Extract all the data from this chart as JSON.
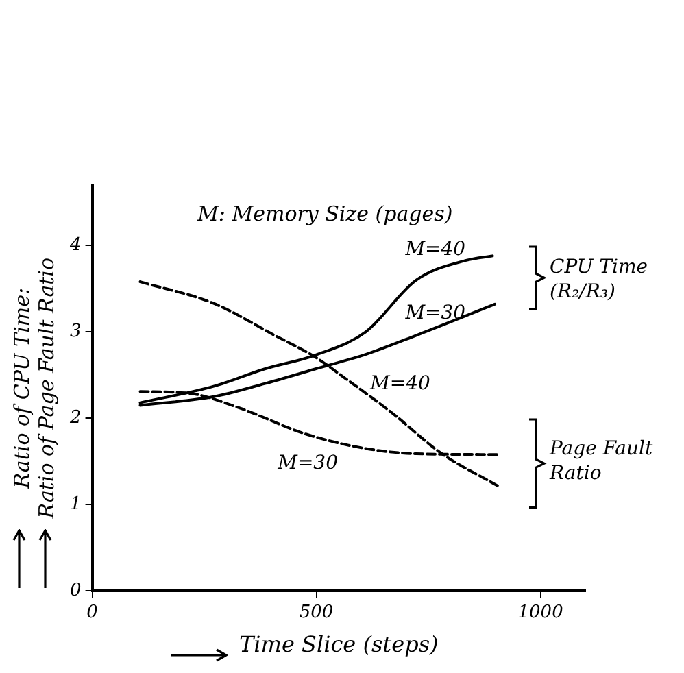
{
  "chart_data": {
    "type": "line",
    "subtitle": "M: Memory Size (pages)",
    "xlabel": "Time Slice (steps)",
    "ylabel": "Ratio of CPU Time:\nRatio of Page Fault Ratio",
    "xlim": [
      0,
      1100
    ],
    "xticks": [
      0,
      500,
      1000
    ],
    "ylim": [
      0,
      4.7
    ],
    "yticks": [
      0,
      1,
      2,
      3,
      4
    ],
    "grid": false,
    "legend": false,
    "marker": "none",
    "annotations": [
      "CPU Time (R₂/R₃)",
      "Page Fault Ratio"
    ],
    "series": [
      {
        "name": "M=40",
        "color": "#000000",
        "line_style": "solid",
        "x": [
          107,
          271,
          384,
          497,
          610,
          723,
          836,
          893
        ],
        "values": [
          2.18,
          2.37,
          2.57,
          2.73,
          3.0,
          3.6,
          3.83,
          3.88
        ]
      },
      {
        "name": "M=30",
        "color": "#000000",
        "line_style": "solid",
        "x": [
          107,
          271,
          384,
          497,
          610,
          723,
          898
        ],
        "values": [
          2.15,
          2.25,
          2.4,
          2.57,
          2.74,
          2.96,
          3.32
        ]
      },
      {
        "name": "M=40",
        "color": "#000000",
        "line_style": "dashed",
        "x": [
          107,
          271,
          407,
          497,
          565,
          667,
          780,
          904
        ],
        "values": [
          3.58,
          3.33,
          2.96,
          2.71,
          2.46,
          2.07,
          1.59,
          1.22
        ]
      },
      {
        "name": "M=30",
        "color": "#000000",
        "line_style": "dashed",
        "x": [
          107,
          215,
          328,
          475,
          610,
          723,
          910
        ],
        "values": [
          2.31,
          2.29,
          2.12,
          1.82,
          1.65,
          1.59,
          1.58
        ]
      }
    ]
  }
}
